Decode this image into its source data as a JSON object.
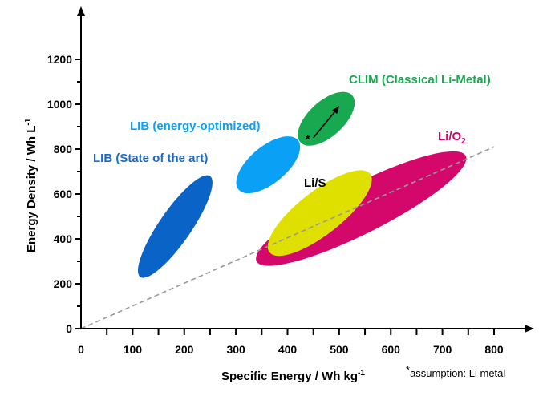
{
  "chart_data": {
    "type": "scatter",
    "xlabel": "Specific Energy / Wh kg",
    "xlabel_sup": "-1",
    "ylabel": "Energy Density / Wh L",
    "ylabel_sup": "-1",
    "xlim": [
      0,
      800
    ],
    "ylim": [
      0,
      1200
    ],
    "x_ticks": [
      "0",
      "100",
      "200",
      "300",
      "400",
      "500",
      "600",
      "700",
      "800"
    ],
    "y_ticks": [
      "0",
      "200",
      "400",
      "600",
      "800",
      "1000",
      "1200"
    ],
    "grid": false,
    "regions": [
      {
        "name": "LIB (State of the art)",
        "color": "#0a64c8",
        "from": [
          115,
          230
        ],
        "to": [
          250,
          680
        ],
        "width": 40
      },
      {
        "name": "LIB (energy-optimized)",
        "color": "#0aa0f5",
        "from": [
          305,
          620
        ],
        "to": [
          420,
          840
        ],
        "width": 46
      },
      {
        "name": "CLIM (Classical Li-Metal)",
        "color": "#18a850",
        "from": [
          425,
          830
        ],
        "to": [
          525,
          1040
        ],
        "width": 44
      },
      {
        "name": "Li/S",
        "color": "#e0e000",
        "from": [
          365,
          340
        ],
        "to": [
          560,
          690
        ],
        "width": 54
      },
      {
        "name": "Li/O",
        "name_sub": "2",
        "color": "#d4086a",
        "from": [
          340,
          300
        ],
        "to": [
          745,
          770
        ],
        "width": 62
      }
    ],
    "trend_line": {
      "from": [
        0,
        0
      ],
      "to": [
        800,
        810
      ],
      "color": "#999999",
      "style": "dashed"
    },
    "annotation": {
      "symbol": "*",
      "arrow_from": [
        450,
        850
      ],
      "arrow_to": [
        500,
        990
      ]
    }
  },
  "labels": {
    "lib_sota": "LIB (State of the art)",
    "lib_opt": "LIB (energy-optimized)",
    "clim": "CLIM (Classical Li-Metal)",
    "lis": "Li/S",
    "lio2": "Li/O",
    "lio2_sub": "2"
  },
  "footnote": {
    "star": "*",
    "text": "assumption: Li metal"
  }
}
